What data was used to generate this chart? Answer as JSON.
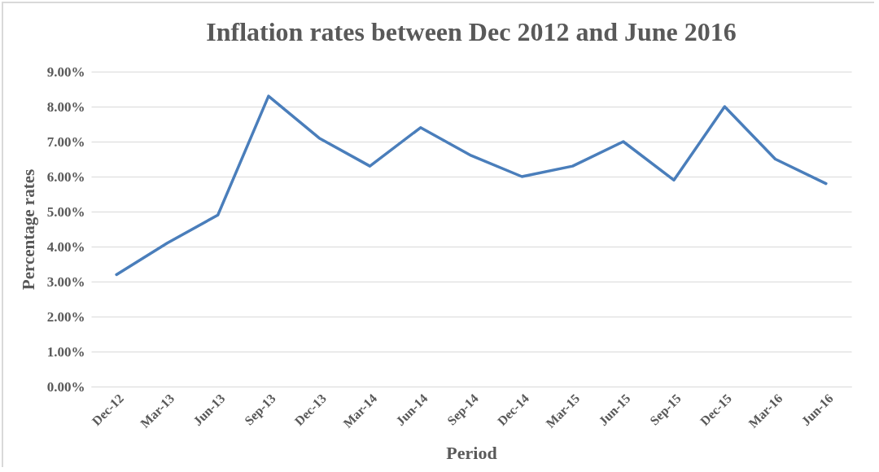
{
  "chart_data": {
    "type": "line",
    "title": "Inflation rates between Dec 2012 and June 2016",
    "xlabel": "Period",
    "ylabel": "Percentage rates",
    "categories": [
      "Dec-12",
      "Mar-13",
      "Jun-13",
      "Sep-13",
      "Dec-13",
      "Mar-14",
      "Jun-14",
      "Sep-14",
      "Dec-14",
      "Mar-15",
      "Jun-15",
      "Sep-15",
      "Dec-15",
      "Mar-16",
      "Jun-16"
    ],
    "series": [
      {
        "color": "#4a7ebb",
        "values": [
          3.2,
          4.1,
          4.9,
          8.3,
          7.1,
          6.3,
          7.4,
          6.6,
          6.0,
          6.3,
          7.0,
          5.9,
          8.0,
          6.5,
          5.8
        ]
      }
    ],
    "ylim": [
      0,
      9
    ],
    "yticks": [
      {
        "value": 0,
        "label": "0.00%"
      },
      {
        "value": 1,
        "label": "1.00%"
      },
      {
        "value": 2,
        "label": "2.00%"
      },
      {
        "value": 3,
        "label": "3.00%"
      },
      {
        "value": 4,
        "label": "4.00%"
      },
      {
        "value": 5,
        "label": "5.00%"
      },
      {
        "value": 6,
        "label": "6.00%"
      },
      {
        "value": 7,
        "label": "7.00%"
      },
      {
        "value": 8,
        "label": "8.00%"
      },
      {
        "value": 9,
        "label": "9.00%"
      }
    ],
    "grid": "y"
  }
}
